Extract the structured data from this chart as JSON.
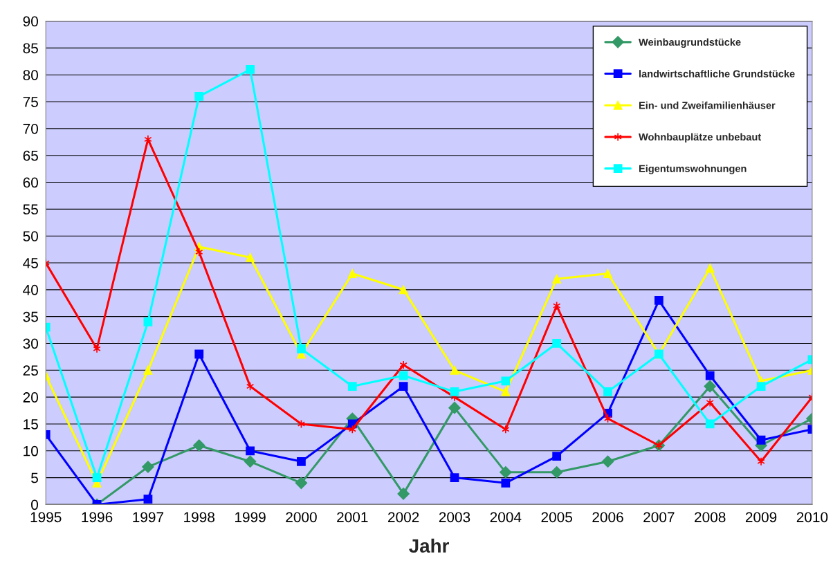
{
  "chart_data": {
    "type": "line",
    "xlabel": "Jahr",
    "x": [
      1995,
      1996,
      1997,
      1998,
      1999,
      2000,
      2001,
      2002,
      2003,
      2004,
      2005,
      2006,
      2007,
      2008,
      2009,
      2010
    ],
    "series": [
      {
        "name": "Weinbaugrundstücke",
        "color": "#339966",
        "marker": "diamond",
        "values": [
          null,
          0,
          7,
          11,
          8,
          4,
          16,
          2,
          18,
          6,
          6,
          8,
          11,
          22,
          11,
          16
        ]
      },
      {
        "name": "landwirtschaftliche Grundstücke",
        "color": "#0000ff",
        "marker": "square",
        "values": [
          13,
          0,
          1,
          28,
          10,
          8,
          15,
          22,
          5,
          4,
          9,
          17,
          38,
          24,
          12,
          14
        ]
      },
      {
        "name": "Ein- und Zweifamilienhäuser",
        "color": "#ffff00",
        "marker": "triangle",
        "values": [
          24,
          4,
          25,
          48,
          46,
          28,
          43,
          40,
          25,
          21,
          42,
          43,
          28,
          44,
          23,
          25
        ]
      },
      {
        "name": "Wohnbauplätze unbebaut",
        "color": "#ff0000",
        "marker": "cross",
        "values": [
          45,
          29,
          68,
          47,
          22,
          15,
          14,
          26,
          20,
          14,
          37,
          16,
          11,
          19,
          8,
          20
        ]
      },
      {
        "name": "Eigentumswohnungen",
        "color": "#00ffff",
        "marker": "square",
        "values": [
          33,
          5,
          34,
          76,
          81,
          29,
          22,
          24,
          21,
          23,
          30,
          21,
          28,
          15,
          22,
          27
        ]
      }
    ],
    "xlim": [
      1995,
      2010
    ],
    "xticks": [
      1995,
      1996,
      1997,
      1998,
      1999,
      2000,
      2001,
      2002,
      2003,
      2004,
      2005,
      2006,
      2007,
      2008,
      2009,
      2010
    ],
    "ylim": [
      0,
      90
    ],
    "yticks": [
      0,
      5,
      10,
      15,
      20,
      25,
      30,
      35,
      40,
      45,
      50,
      55,
      60,
      65,
      70,
      75,
      80,
      85,
      90
    ],
    "grid": "y",
    "legend": "top right"
  }
}
